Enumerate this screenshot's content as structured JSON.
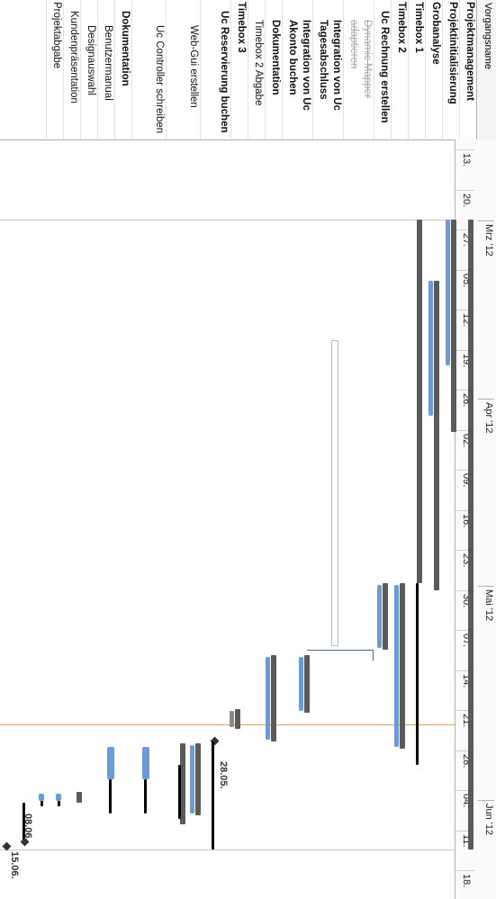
{
  "header": {
    "name_column": "Vorgangsname"
  },
  "timescale": {
    "months": [
      "Mrz '12",
      "Apr '12",
      "Mai '12",
      "Jun '12"
    ],
    "weeks": [
      "13.",
      "20.",
      "27.",
      "05.",
      "12.",
      "19.",
      "26.",
      "02.",
      "09.",
      "16.",
      "23.",
      "30.",
      "07.",
      "14.",
      "21.",
      "28.",
      "04.",
      "11.",
      "18."
    ]
  },
  "tasks": [
    {
      "label": "Projektmanagement"
    },
    {
      "label": "Projektinitialisierung"
    },
    {
      "label": "Grobanalyse"
    },
    {
      "label": "Timebox 1"
    },
    {
      "label": "Timebox 2"
    },
    {
      "label": "Uc Rechnung erstellen"
    },
    {
      "label": "Dynamic Mapper adaptieren"
    },
    {
      "label": "Integration von Uc Tagesabschluss"
    },
    {
      "label": "Integration von Uc Akonto buchen"
    },
    {
      "label": "Dokumentation"
    },
    {
      "label": "Timebox 2 Abgabe"
    },
    {
      "label": "Timebox 3"
    },
    {
      "label": "Uc Reservierung buchen"
    },
    {
      "label": "Web-Gui erstellen"
    },
    {
      "label": "Uc Controller schreiben"
    },
    {
      "label": "Dokumentation"
    },
    {
      "label": "Benutzermanual"
    },
    {
      "label": "Designauswahl"
    },
    {
      "label": "Kundenpräsentation"
    },
    {
      "label": "Projektabgabe"
    }
  ],
  "milestones": [
    "28.05.",
    "08.06.",
    "15.06."
  ]
}
